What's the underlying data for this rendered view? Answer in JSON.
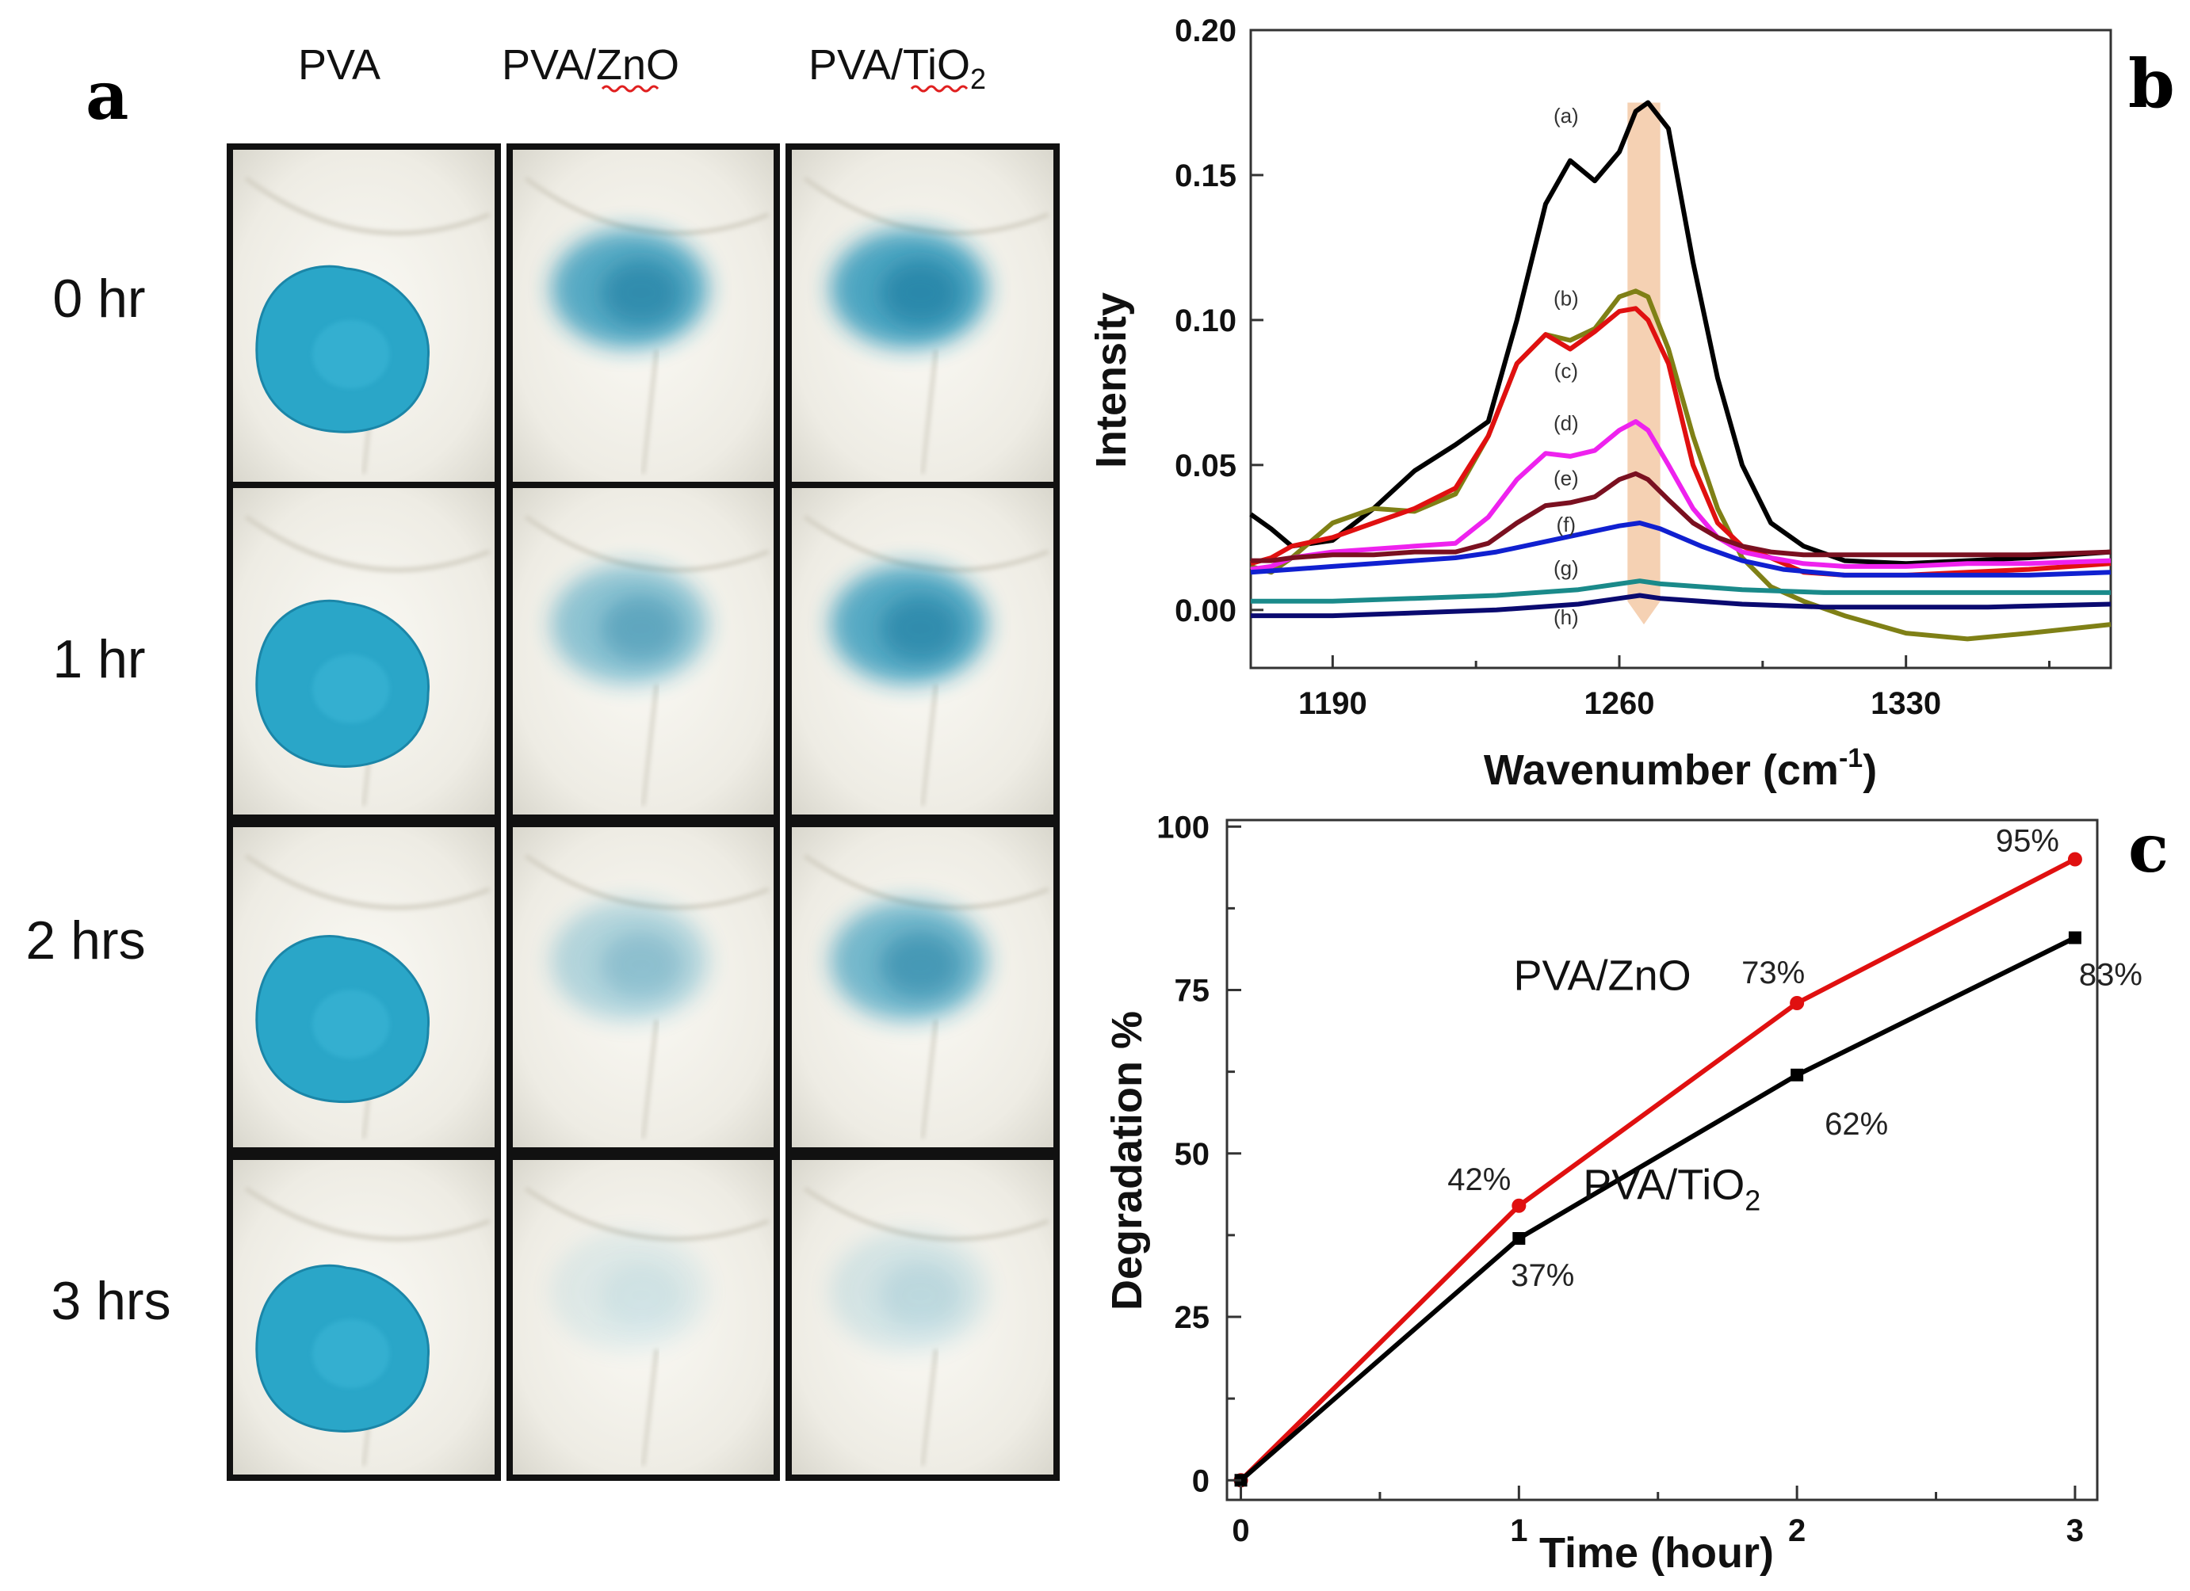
{
  "panel_a": {
    "label": "a",
    "columns": [
      "PVA",
      "PVA/ZnO",
      "PVA/TiO"
    ],
    "tio2_subscript": "2",
    "rows": [
      "0 hr",
      "1 hr",
      "2 hrs",
      "3 hrs"
    ],
    "colors": {
      "dye": "#2aa6c8",
      "fabric": "#f3f1ea",
      "frame": "#111111"
    },
    "stain_intensity": [
      [
        1.0,
        0.85,
        0.9
      ],
      [
        1.0,
        0.55,
        0.85
      ],
      [
        1.0,
        0.35,
        0.7
      ],
      [
        1.0,
        0.12,
        0.18
      ]
    ]
  },
  "chart_data": [
    {
      "type": "line",
      "panel_label": "b",
      "title": "",
      "xlabel": "Wavenumber (cm",
      "xlabel_sup": "-1",
      "xlabel_close": ")",
      "ylabel": "Intensity",
      "xlim": [
        1170,
        1380
      ],
      "ylim": [
        -0.02,
        0.2
      ],
      "xticks": [
        1190,
        1260,
        1330
      ],
      "xtick_labels": [
        "1190",
        "1260",
        "1330"
      ],
      "yticks": [
        0.0,
        0.05,
        0.1,
        0.15,
        0.2
      ],
      "ytick_labels": [
        "0.00",
        "0.05",
        "0.10",
        "0.15",
        "0.20"
      ],
      "highlight_band": {
        "x": [
          1262,
          1270
        ],
        "color": "#f3c9a6"
      },
      "series": [
        {
          "name": "(a)",
          "color": "#000000",
          "label_at": [
            1247,
            0.168
          ],
          "x": [
            1170,
            1175,
            1180,
            1190,
            1200,
            1210,
            1220,
            1228,
            1235,
            1242,
            1248,
            1254,
            1260,
            1264,
            1267,
            1272,
            1278,
            1284,
            1290,
            1297,
            1305,
            1315,
            1330,
            1345,
            1360,
            1380
          ],
          "y": [
            0.033,
            0.028,
            0.022,
            0.024,
            0.035,
            0.048,
            0.057,
            0.065,
            0.1,
            0.14,
            0.155,
            0.148,
            0.158,
            0.172,
            0.175,
            0.166,
            0.12,
            0.08,
            0.05,
            0.03,
            0.022,
            0.017,
            0.016,
            0.017,
            0.018,
            0.02
          ]
        },
        {
          "name": "(b)",
          "color": "#7f8016",
          "label_at": [
            1247,
            0.105
          ],
          "x": [
            1170,
            1175,
            1180,
            1190,
            1200,
            1210,
            1220,
            1228,
            1235,
            1242,
            1248,
            1254,
            1260,
            1264,
            1267,
            1272,
            1278,
            1284,
            1290,
            1297,
            1305,
            1315,
            1330,
            1345,
            1360,
            1380
          ],
          "y": [
            0.015,
            0.013,
            0.018,
            0.03,
            0.035,
            0.034,
            0.04,
            0.06,
            0.085,
            0.095,
            0.093,
            0.097,
            0.108,
            0.11,
            0.108,
            0.09,
            0.06,
            0.035,
            0.018,
            0.008,
            0.003,
            -0.002,
            -0.008,
            -0.01,
            -0.008,
            -0.005
          ]
        },
        {
          "name": "(c)",
          "color": "#e01010",
          "label_at": [
            1247,
            0.08
          ],
          "x": [
            1170,
            1175,
            1180,
            1190,
            1200,
            1210,
            1220,
            1228,
            1235,
            1242,
            1248,
            1254,
            1260,
            1264,
            1267,
            1272,
            1278,
            1284,
            1290,
            1297,
            1305,
            1315,
            1330,
            1345,
            1360,
            1380
          ],
          "y": [
            0.016,
            0.018,
            0.022,
            0.025,
            0.03,
            0.035,
            0.042,
            0.06,
            0.085,
            0.095,
            0.09,
            0.096,
            0.103,
            0.104,
            0.1,
            0.085,
            0.05,
            0.03,
            0.022,
            0.018,
            0.013,
            0.012,
            0.012,
            0.013,
            0.014,
            0.016
          ]
        },
        {
          "name": "(d)",
          "color": "#ee22ee",
          "label_at": [
            1247,
            0.062
          ],
          "x": [
            1170,
            1175,
            1180,
            1190,
            1200,
            1210,
            1220,
            1228,
            1235,
            1242,
            1248,
            1254,
            1260,
            1264,
            1267,
            1272,
            1278,
            1284,
            1290,
            1297,
            1305,
            1315,
            1330,
            1345,
            1360,
            1380
          ],
          "y": [
            0.014,
            0.015,
            0.018,
            0.02,
            0.021,
            0.022,
            0.023,
            0.032,
            0.045,
            0.054,
            0.053,
            0.055,
            0.062,
            0.065,
            0.062,
            0.05,
            0.035,
            0.025,
            0.02,
            0.018,
            0.016,
            0.015,
            0.015,
            0.016,
            0.016,
            0.017
          ]
        },
        {
          "name": "(e)",
          "color": "#7a1020",
          "label_at": [
            1247,
            0.043
          ],
          "x": [
            1170,
            1175,
            1180,
            1190,
            1200,
            1210,
            1220,
            1228,
            1235,
            1242,
            1248,
            1254,
            1260,
            1264,
            1267,
            1272,
            1278,
            1284,
            1290,
            1297,
            1305,
            1315,
            1330,
            1345,
            1360,
            1380
          ],
          "y": [
            0.017,
            0.017,
            0.018,
            0.019,
            0.019,
            0.02,
            0.02,
            0.023,
            0.03,
            0.036,
            0.037,
            0.039,
            0.045,
            0.047,
            0.045,
            0.038,
            0.03,
            0.025,
            0.022,
            0.02,
            0.019,
            0.019,
            0.019,
            0.019,
            0.019,
            0.02
          ]
        },
        {
          "name": "(f)",
          "color": "#1020d0",
          "label_at": [
            1247,
            0.027
          ],
          "x": [
            1170,
            1180,
            1190,
            1200,
            1210,
            1220,
            1230,
            1240,
            1250,
            1260,
            1265,
            1270,
            1280,
            1290,
            1300,
            1315,
            1330,
            1345,
            1360,
            1380
          ],
          "y": [
            0.013,
            0.014,
            0.015,
            0.016,
            0.017,
            0.018,
            0.02,
            0.023,
            0.026,
            0.029,
            0.03,
            0.028,
            0.022,
            0.017,
            0.014,
            0.012,
            0.012,
            0.012,
            0.012,
            0.013
          ]
        },
        {
          "name": "(g)",
          "color": "#1a8a8a",
          "label_at": [
            1247,
            0.012
          ],
          "x": [
            1170,
            1190,
            1210,
            1230,
            1250,
            1260,
            1265,
            1270,
            1290,
            1310,
            1330,
            1350,
            1380
          ],
          "y": [
            0.003,
            0.003,
            0.004,
            0.005,
            0.007,
            0.009,
            0.01,
            0.009,
            0.007,
            0.006,
            0.006,
            0.006,
            0.006
          ]
        },
        {
          "name": "(h)",
          "color": "#0a0a70",
          "label_at": [
            1247,
            -0.005
          ],
          "x": [
            1170,
            1190,
            1210,
            1230,
            1250,
            1260,
            1265,
            1270,
            1290,
            1310,
            1330,
            1350,
            1380
          ],
          "y": [
            -0.002,
            -0.002,
            -0.001,
            0.0,
            0.002,
            0.004,
            0.005,
            0.004,
            0.002,
            0.001,
            0.001,
            0.001,
            0.002
          ]
        }
      ]
    },
    {
      "type": "line",
      "panel_label": "c",
      "title": "",
      "xlabel": "Time (hour)",
      "ylabel": "Degradation %",
      "xlim": [
        -0.05,
        3.08
      ],
      "ylim": [
        -3,
        101
      ],
      "xticks": [
        0,
        1,
        2,
        3
      ],
      "xtick_labels": [
        "0",
        "1",
        "2",
        "3"
      ],
      "yticks": [
        0,
        25,
        50,
        75,
        100
      ],
      "ytick_labels": [
        "0",
        "25",
        "50",
        "75",
        "100"
      ],
      "series": [
        {
          "name": "PVA/ZnO",
          "name_sub": "",
          "color": "#e01010",
          "x": [
            0,
            1,
            2,
            3
          ],
          "y": [
            0,
            42,
            73,
            95
          ],
          "data_labels": [
            "",
            "42%",
            "73%",
            "95%"
          ],
          "label_anchor": [
            1.3,
            75
          ]
        },
        {
          "name": "PVA/TiO",
          "name_sub": "2",
          "color": "#000000",
          "x": [
            0,
            1,
            2,
            3
          ],
          "y": [
            0,
            37,
            62,
            83
          ],
          "data_labels": [
            "",
            "37%",
            "62%",
            "83%"
          ],
          "label_anchor": [
            1.55,
            43
          ]
        }
      ]
    }
  ]
}
